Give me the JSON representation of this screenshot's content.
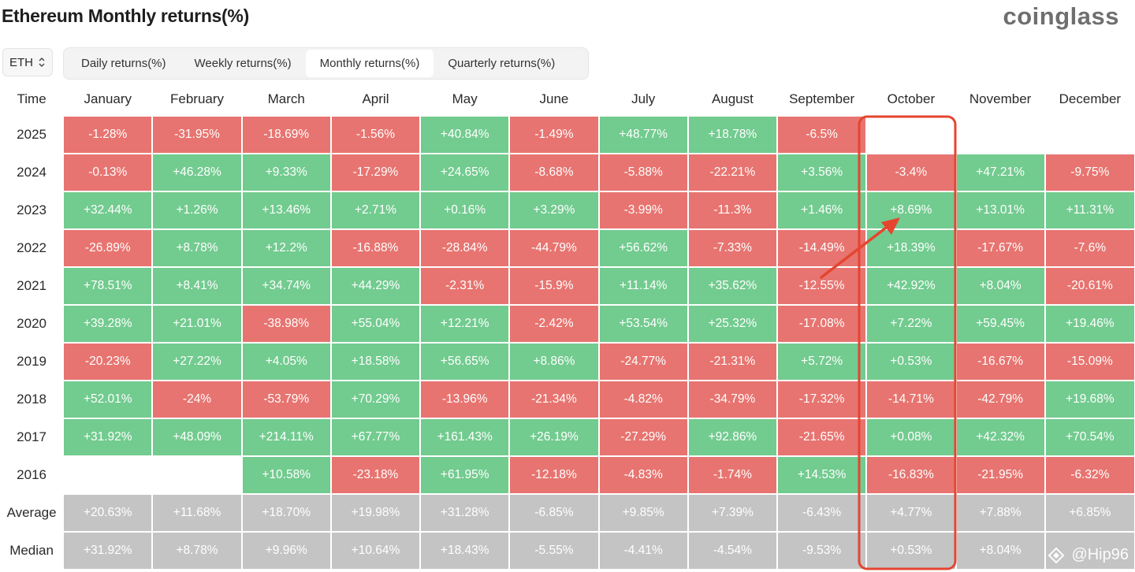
{
  "header": {
    "title": "Ethereum Monthly returns(%)",
    "logo_text": "coinglass"
  },
  "controls": {
    "asset": "ETH",
    "tabs": [
      {
        "label": "Daily returns(%)",
        "active": false
      },
      {
        "label": "Weekly returns(%)",
        "active": false
      },
      {
        "label": "Monthly returns(%)",
        "active": true
      },
      {
        "label": "Quarterly returns(%)",
        "active": false
      }
    ]
  },
  "table": {
    "corner_label": "Time",
    "months": [
      "January",
      "February",
      "March",
      "April",
      "May",
      "June",
      "July",
      "August",
      "September",
      "October",
      "November",
      "December"
    ],
    "rows": [
      {
        "label": "2025",
        "type": "year",
        "values": [
          "-1.28%",
          "-31.95%",
          "-18.69%",
          "-1.56%",
          "+40.84%",
          "-1.49%",
          "+48.77%",
          "+18.78%",
          "-6.5%",
          "",
          "",
          ""
        ]
      },
      {
        "label": "2024",
        "type": "year",
        "values": [
          "-0.13%",
          "+46.28%",
          "+9.33%",
          "-17.29%",
          "+24.65%",
          "-8.68%",
          "-5.88%",
          "-22.21%",
          "+3.56%",
          "-3.4%",
          "+47.21%",
          "-9.75%"
        ]
      },
      {
        "label": "2023",
        "type": "year",
        "values": [
          "+32.44%",
          "+1.26%",
          "+13.46%",
          "+2.71%",
          "+0.16%",
          "+3.29%",
          "-3.99%",
          "-11.3%",
          "+1.46%",
          "+8.69%",
          "+13.01%",
          "+11.31%"
        ]
      },
      {
        "label": "2022",
        "type": "year",
        "values": [
          "-26.89%",
          "+8.78%",
          "+12.2%",
          "-16.88%",
          "-28.84%",
          "-44.79%",
          "+56.62%",
          "-7.33%",
          "-14.49%",
          "+18.39%",
          "-17.67%",
          "-7.6%"
        ]
      },
      {
        "label": "2021",
        "type": "year",
        "values": [
          "+78.51%",
          "+8.41%",
          "+34.74%",
          "+44.29%",
          "-2.31%",
          "-15.9%",
          "+11.14%",
          "+35.62%",
          "-12.55%",
          "+42.92%",
          "+8.04%",
          "-20.61%"
        ]
      },
      {
        "label": "2020",
        "type": "year",
        "values": [
          "+39.28%",
          "+21.01%",
          "-38.98%",
          "+55.04%",
          "+12.21%",
          "-2.42%",
          "+53.54%",
          "+25.32%",
          "-17.08%",
          "+7.22%",
          "+59.45%",
          "+19.46%"
        ]
      },
      {
        "label": "2019",
        "type": "year",
        "values": [
          "-20.23%",
          "+27.22%",
          "+4.05%",
          "+18.58%",
          "+56.65%",
          "+8.86%",
          "-24.77%",
          "-21.31%",
          "+5.72%",
          "+0.53%",
          "-16.67%",
          "-15.09%"
        ]
      },
      {
        "label": "2018",
        "type": "year",
        "values": [
          "+52.01%",
          "-24%",
          "-53.79%",
          "+70.29%",
          "-13.96%",
          "-21.34%",
          "-4.82%",
          "-34.79%",
          "-17.32%",
          "-14.71%",
          "-42.79%",
          "+19.68%"
        ]
      },
      {
        "label": "2017",
        "type": "year",
        "values": [
          "+31.92%",
          "+48.09%",
          "+214.11%",
          "+67.77%",
          "+161.43%",
          "+26.19%",
          "-27.29%",
          "+92.86%",
          "-21.65%",
          "+0.08%",
          "+42.32%",
          "+70.54%"
        ]
      },
      {
        "label": "2016",
        "type": "year",
        "values": [
          "",
          "",
          "+10.58%",
          "-23.18%",
          "+61.95%",
          "-12.18%",
          "-4.83%",
          "-1.74%",
          "+14.53%",
          "-16.83%",
          "-21.95%",
          "-6.32%"
        ]
      },
      {
        "label": "Average",
        "type": "stat",
        "values": [
          "+20.63%",
          "+11.68%",
          "+18.70%",
          "+19.98%",
          "+31.28%",
          "-6.85%",
          "+9.85%",
          "+7.39%",
          "-6.43%",
          "+4.77%",
          "+7.88%",
          "+6.85%"
        ]
      },
      {
        "label": "Median",
        "type": "stat",
        "values": [
          "+31.92%",
          "+8.78%",
          "+9.96%",
          "+10.64%",
          "+18.43%",
          "-5.55%",
          "-4.41%",
          "-4.54%",
          "-9.53%",
          "+0.53%",
          "+8.04%",
          ""
        ]
      }
    ]
  },
  "annotation": {
    "highlight_month": "October",
    "color": "#e5452f"
  },
  "watermark": {
    "text": "@Hip96"
  },
  "colors": {
    "positive": "#72cb8f",
    "negative": "#e77470",
    "stat": "#c4c4c4"
  }
}
